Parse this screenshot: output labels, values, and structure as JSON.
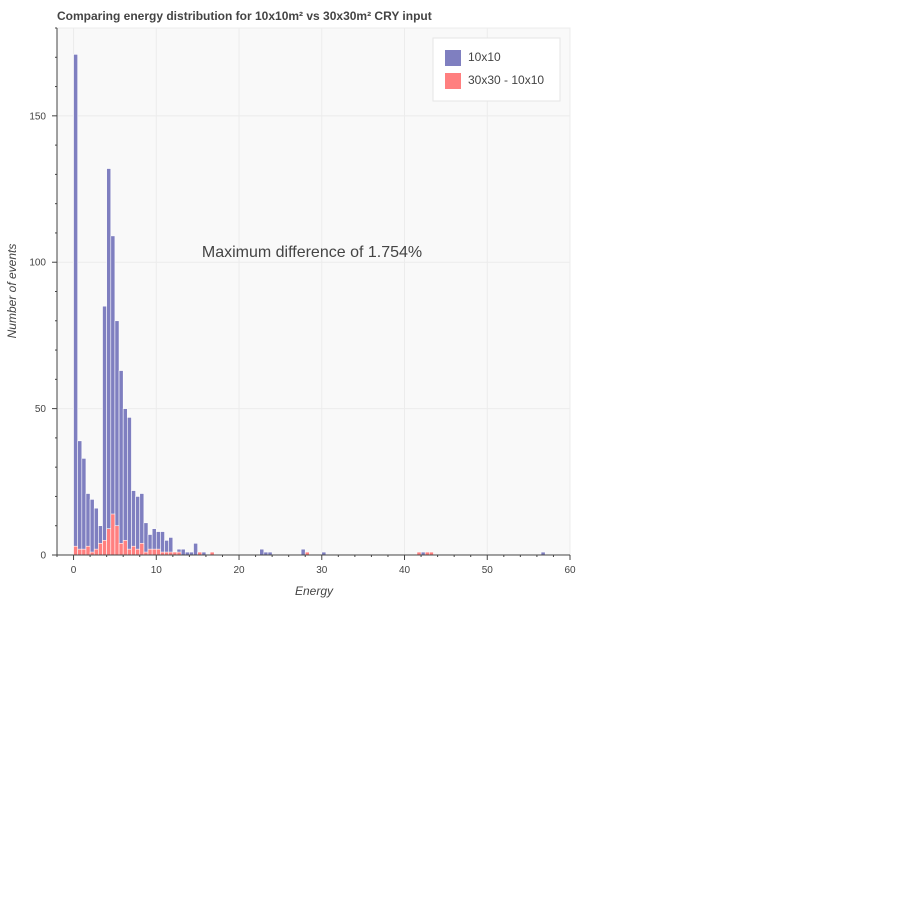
{
  "chart_data": {
    "type": "bar",
    "title": "Comparing energy distribution for 10x10m² vs 30x30m² CRY input",
    "xlabel": "Energy",
    "ylabel": "Number of events",
    "annotation": "Maximum difference of 1.754%",
    "xlim": [
      -2,
      60
    ],
    "ylim": [
      0,
      180
    ],
    "x_ticks": [
      0,
      10,
      20,
      30,
      40,
      50,
      60
    ],
    "y_ticks": [
      0,
      50,
      100,
      150
    ],
    "bin_width": 0.5,
    "grid": true,
    "legend_position": "top-right",
    "series": [
      {
        "name": "10x10",
        "color": "#7f7fc0",
        "x": [
          0,
          0.5,
          1,
          1.5,
          2,
          2.5,
          3,
          3.5,
          4,
          4.5,
          5,
          5.5,
          6,
          6.5,
          7,
          7.5,
          8,
          8.5,
          9,
          9.5,
          10,
          10.5,
          11,
          11.5,
          12,
          12.5,
          13,
          13.5,
          14,
          14.5,
          15,
          15.5,
          16,
          16.5,
          17,
          17.5,
          18,
          22.5,
          23,
          23.5,
          27.5,
          30,
          42,
          56.5
        ],
        "values": [
          171,
          39,
          33,
          21,
          19,
          16,
          10,
          85,
          132,
          109,
          80,
          63,
          50,
          47,
          22,
          20,
          21,
          11,
          7,
          9,
          8,
          8,
          5,
          6,
          1,
          2,
          2,
          1,
          1,
          4,
          1,
          1,
          0,
          0,
          0,
          0,
          0,
          2,
          1,
          1,
          2,
          1,
          1,
          1
        ]
      },
      {
        "name": "30x30 - 10x10",
        "color": "#ff7f7f",
        "x": [
          0,
          0.5,
          1,
          1.5,
          2,
          2.5,
          3,
          3.5,
          4,
          4.5,
          5,
          5.5,
          6,
          6.5,
          7,
          7.5,
          8,
          8.5,
          9,
          9.5,
          10,
          10.5,
          11,
          11.5,
          12,
          12.5,
          15,
          16.5,
          28,
          41.5,
          42.5,
          43
        ],
        "values": [
          3,
          2,
          2,
          3,
          1,
          2,
          4,
          5,
          9,
          14,
          10,
          4,
          5,
          2,
          3,
          2,
          4,
          1,
          2,
          2,
          2,
          1,
          1,
          1,
          1,
          1,
          1,
          1,
          1,
          1,
          1,
          1
        ]
      }
    ]
  }
}
